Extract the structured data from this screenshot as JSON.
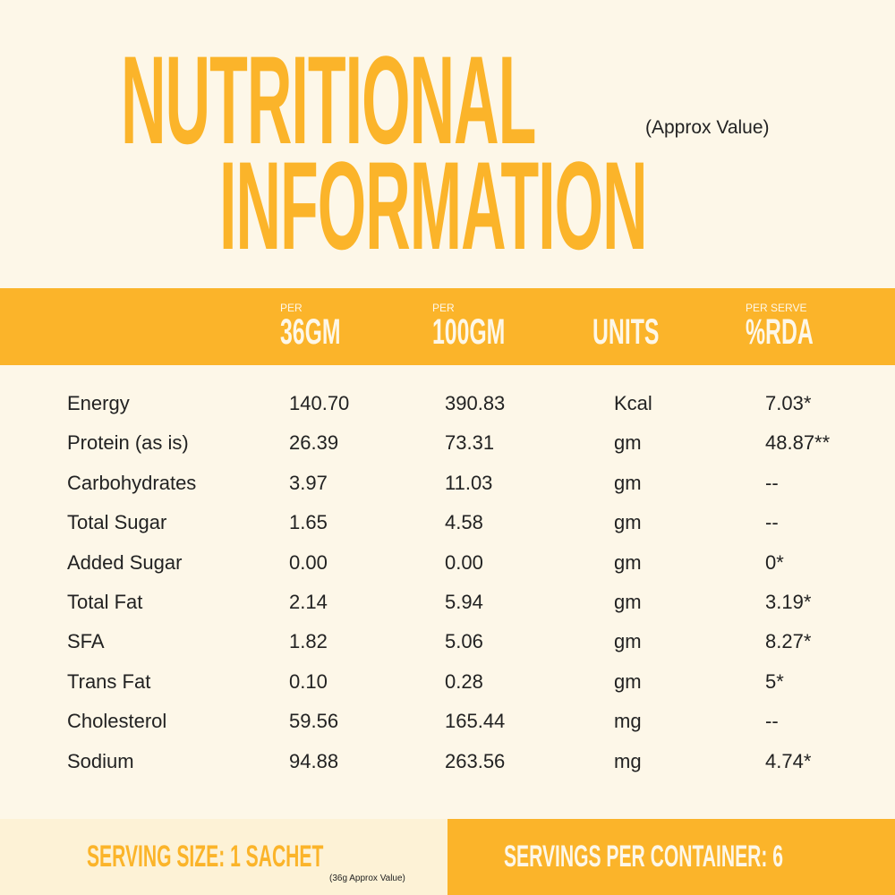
{
  "header": {
    "title_line1": "NUTRITIONAL",
    "title_line2": "INFORMATION",
    "note": "(Approx Value)"
  },
  "table": {
    "columns": [
      {
        "prefix": "PER",
        "label": "36GM"
      },
      {
        "prefix": "PER",
        "label": "100GM"
      },
      {
        "label": "UNITS"
      },
      {
        "prefix": "PER SERVE",
        "label": "%RDA"
      }
    ],
    "rows": [
      [
        "Energy",
        "140.70",
        "390.83",
        "Kcal",
        "7.03*"
      ],
      [
        "Protein (as is)",
        "26.39",
        "73.31",
        "gm",
        "48.87**"
      ],
      [
        "Carbohydrates",
        "3.97",
        "11.03",
        "gm",
        "--"
      ],
      [
        "Total Sugar",
        "1.65",
        "4.58",
        "gm",
        "--"
      ],
      [
        "Added Sugar",
        "0.00",
        "0.00",
        "gm",
        "0*"
      ],
      [
        "Total Fat",
        "2.14",
        "5.94",
        "gm",
        "3.19*"
      ],
      [
        "SFA",
        "1.82",
        "5.06",
        "gm",
        "8.27*"
      ],
      [
        "Trans Fat",
        "0.10",
        "0.28",
        "gm",
        "5*"
      ],
      [
        "Cholesterol",
        "59.56",
        "165.44",
        "mg",
        "--"
      ],
      [
        "Sodium",
        "94.88",
        "263.56",
        "mg",
        "4.74*"
      ]
    ]
  },
  "footer": {
    "serving_size": "SERVING SIZE: 1 SACHET",
    "serving_note": "(36g Approx Value)",
    "servings_per_container": "SERVINGS PER CONTAINER: 6"
  }
}
